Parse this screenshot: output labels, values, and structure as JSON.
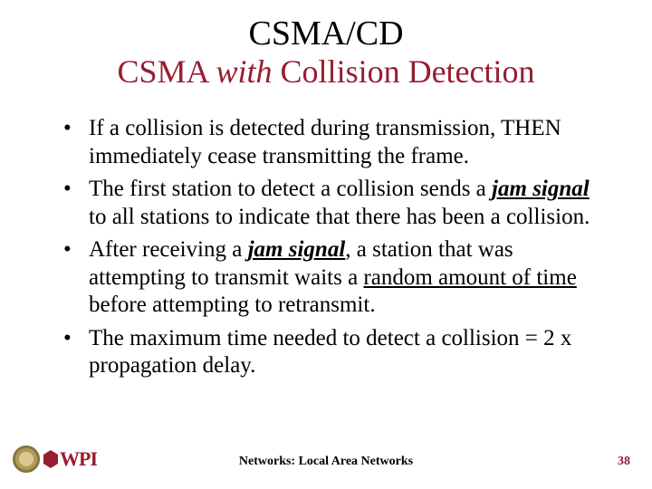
{
  "title": "CSMA/CD",
  "subtitle_prefix": "CSMA ",
  "subtitle_italic": "with",
  "subtitle_suffix": " Collision Detection",
  "bullets": {
    "b1": "If a collision is detected during transmission, THEN immediately cease transmitting the frame.",
    "b2a": "The first station to detect a collision sends a ",
    "b2_jam": "jam signal",
    "b2b": " to all stations to indicate that there has been a collision.",
    "b3a": "After receiving a ",
    "b3_jam": "jam signal",
    "b3b": ", a station that was attempting to transmit waits a ",
    "b3_rand": "random amount of time",
    "b3c": " before attempting to retransmit.",
    "b4": "The maximum time needed to detect a collision = 2 x propagation delay."
  },
  "footer": {
    "center": "Networks: Local Area Networks",
    "page": "38",
    "wpi": "WPI"
  },
  "colors": {
    "accent": "#971d2f",
    "text": "#000000",
    "bg": "#ffffff"
  }
}
